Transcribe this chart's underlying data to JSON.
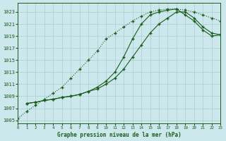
{
  "title": "Graphe pression niveau de la mer (hPa)",
  "bg_color": "#cce8ec",
  "grid_color": "#b8d8dc",
  "line_color": "#1a5c1a",
  "xlim": [
    0,
    23
  ],
  "ylim": [
    1004.5,
    1024.5
  ],
  "yticks": [
    1005,
    1007,
    1009,
    1011,
    1013,
    1015,
    1017,
    1019,
    1021,
    1023
  ],
  "xticks": [
    0,
    1,
    2,
    3,
    4,
    5,
    6,
    7,
    8,
    9,
    10,
    11,
    12,
    13,
    14,
    15,
    16,
    17,
    18,
    19,
    20,
    21,
    22,
    23
  ],
  "series_dotted_x": [
    0,
    1,
    2,
    3,
    4,
    5,
    6,
    7,
    8,
    9,
    10,
    11,
    12,
    13,
    14,
    15,
    16,
    17,
    18,
    19,
    20,
    21,
    22,
    23
  ],
  "series_dotted_y": [
    1005.3,
    1006.5,
    1007.5,
    1008.5,
    1009.5,
    1010.5,
    1012.0,
    1013.5,
    1015.0,
    1016.5,
    1018.5,
    1019.5,
    1020.5,
    1021.5,
    1022.3,
    1023.0,
    1023.3,
    1023.5,
    1023.5,
    1023.3,
    1023.0,
    1022.5,
    1022.0,
    1021.5
  ],
  "series_upper_x": [
    1,
    2,
    3,
    4,
    5,
    6,
    7,
    8,
    9,
    10,
    11,
    12,
    13,
    14,
    15,
    16,
    17,
    18,
    19,
    20,
    21,
    22,
    23
  ],
  "series_upper_y": [
    1007.8,
    1008.0,
    1008.3,
    1008.5,
    1008.8,
    1009.0,
    1009.3,
    1009.8,
    1010.5,
    1011.5,
    1013.0,
    1015.5,
    1018.5,
    1021.0,
    1022.5,
    1023.0,
    1023.3,
    1023.5,
    1022.5,
    1021.5,
    1020.0,
    1019.0,
    1019.2
  ],
  "series_lower_x": [
    1,
    2,
    3,
    4,
    5,
    6,
    7,
    8,
    9,
    10,
    11,
    12,
    13,
    14,
    15,
    16,
    17,
    18,
    19,
    20,
    21,
    22,
    23
  ],
  "series_lower_y": [
    1007.8,
    1008.0,
    1008.3,
    1008.5,
    1008.8,
    1009.0,
    1009.3,
    1009.8,
    1010.2,
    1011.0,
    1012.0,
    1013.5,
    1015.5,
    1017.5,
    1019.5,
    1021.0,
    1022.0,
    1023.0,
    1023.0,
    1022.0,
    1020.5,
    1019.5,
    1019.2
  ]
}
